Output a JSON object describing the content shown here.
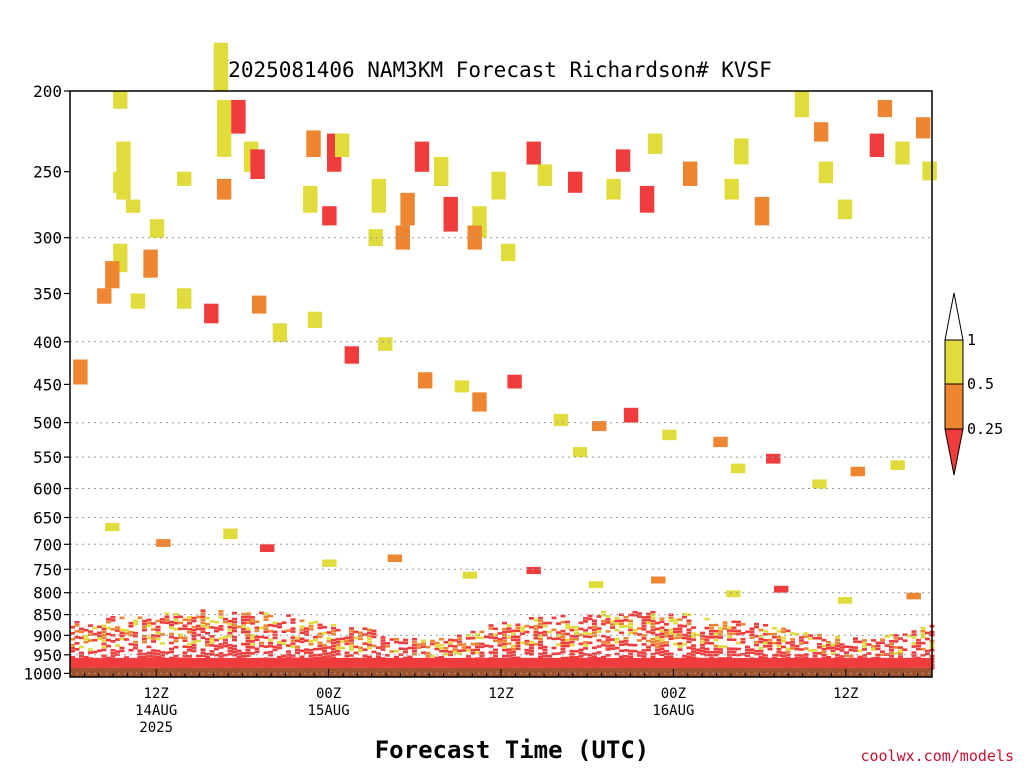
{
  "chart_data": {
    "type": "heatmap",
    "title": "2025081406 NAM3KM Forecast Richardson# KVSF",
    "xlabel": "Forecast Time (UTC)",
    "ylabel": "",
    "credit": "coolwx.com/models",
    "x_start_hour": 0,
    "x_end_hour": 60,
    "x_ticks": [
      {
        "hour": 6,
        "lines": [
          "12Z",
          "14AUG",
          "2025"
        ]
      },
      {
        "hour": 18,
        "lines": [
          "00Z",
          "15AUG"
        ]
      },
      {
        "hour": 30,
        "lines": [
          "12Z"
        ]
      },
      {
        "hour": 42,
        "lines": [
          "00Z",
          "16AUG"
        ]
      },
      {
        "hour": 54,
        "lines": [
          "12Z"
        ]
      }
    ],
    "y_axis": {
      "scale": "log-pressure",
      "top": 200,
      "bottom": 1000,
      "ticks": [
        200,
        250,
        300,
        350,
        400,
        450,
        500,
        550,
        600,
        650,
        700,
        750,
        800,
        850,
        900,
        950,
        1000
      ],
      "gridlines": [
        300,
        400,
        500,
        550,
        600,
        650,
        700,
        750,
        800,
        850,
        900,
        950,
        1000
      ]
    },
    "ground": {
      "pressure": 985,
      "color": "#a0522d"
    },
    "levels": [
      {
        "label": "<0.25",
        "color": "#f03c3c"
      },
      {
        "label": "0.25-0.5",
        "color": "#ee8530"
      },
      {
        "label": "0.5-1",
        "color": "#e0dc3c"
      }
    ],
    "colorbar": {
      "labels": [
        "1",
        "0.5",
        "0.25"
      ],
      "colors": [
        "#ffffff",
        "#e0dc3c",
        "#ee8530",
        "#f03c3c"
      ]
    },
    "cells": [
      [
        3,
        0,
        200,
        210,
        2
      ],
      [
        3,
        2,
        230,
        270,
        2
      ],
      [
        3,
        8,
        270,
        280,
        2
      ],
      [
        3,
        0,
        250,
        265,
        2
      ],
      [
        7,
        4,
        250,
        260,
        2
      ],
      [
        5,
        5,
        285,
        300,
        2
      ],
      [
        3,
        0,
        305,
        330,
        2
      ],
      [
        5,
        1,
        310,
        335,
        1
      ],
      [
        2,
        4,
        320,
        345,
        1
      ],
      [
        1,
        8,
        345,
        360,
        1
      ],
      [
        0,
        2,
        420,
        450,
        1
      ],
      [
        10,
        0,
        175,
        200,
        2
      ],
      [
        10,
        2,
        205,
        240,
        2
      ],
      [
        11,
        2,
        205,
        225,
        0
      ],
      [
        12,
        1,
        230,
        250,
        2
      ],
      [
        10,
        2,
        255,
        270,
        1
      ],
      [
        12,
        5,
        235,
        255,
        0
      ],
      [
        16,
        4,
        223,
        240,
        1
      ],
      [
        17,
        8,
        225,
        250,
        0
      ],
      [
        16,
        2,
        260,
        280,
        2
      ],
      [
        17,
        5,
        275,
        290,
        0
      ],
      [
        18,
        4,
        225,
        240,
        2
      ],
      [
        20,
        7,
        293,
        307,
        2
      ],
      [
        21,
        0,
        255,
        280,
        2
      ],
      [
        23,
        0,
        265,
        290,
        1
      ],
      [
        22,
        6,
        290,
        310,
        1
      ],
      [
        24,
        0,
        230,
        250,
        0
      ],
      [
        25,
        3,
        240,
        260,
        2
      ],
      [
        26,
        0,
        268,
        295,
        0
      ],
      [
        28,
        0,
        275,
        300,
        2
      ],
      [
        29,
        3,
        250,
        270,
        2
      ],
      [
        27,
        6,
        290,
        310,
        1
      ],
      [
        30,
        0,
        305,
        320,
        2
      ],
      [
        31,
        7,
        230,
        245,
        0
      ],
      [
        32,
        5,
        245,
        260,
        2
      ],
      [
        34,
        6,
        250,
        265,
        0
      ],
      [
        37,
        3,
        255,
        270,
        2
      ],
      [
        38,
        0,
        235,
        250,
        0
      ],
      [
        39,
        6,
        260,
        280,
        0
      ],
      [
        40,
        2,
        225,
        238,
        2
      ],
      [
        42,
        6,
        243,
        260,
        1
      ],
      [
        45,
        5,
        255,
        270,
        2
      ],
      [
        46,
        2,
        228,
        245,
        2
      ],
      [
        47,
        6,
        268,
        290,
        1
      ],
      [
        50,
        4,
        200,
        215,
        2
      ],
      [
        51,
        7,
        218,
        230,
        1
      ],
      [
        52,
        1,
        243,
        258,
        2
      ],
      [
        53,
        4,
        270,
        285,
        2
      ],
      [
        55,
        6,
        225,
        240,
        0
      ],
      [
        56,
        2,
        205,
        215,
        1
      ],
      [
        57,
        4,
        230,
        245,
        2
      ],
      [
        58,
        8,
        215,
        228,
        1
      ],
      [
        59,
        3,
        243,
        256,
        2
      ],
      [
        4,
        2,
        350,
        365,
        2
      ],
      [
        7,
        4,
        345,
        365,
        2
      ],
      [
        9,
        3,
        360,
        380,
        0
      ],
      [
        12,
        6,
        352,
        370,
        1
      ],
      [
        14,
        1,
        380,
        400,
        2
      ],
      [
        16,
        5,
        368,
        385,
        2
      ],
      [
        19,
        1,
        405,
        425,
        0
      ],
      [
        21,
        4,
        395,
        410,
        2
      ],
      [
        24,
        2,
        435,
        455,
        1
      ],
      [
        26,
        7,
        445,
        460,
        2
      ],
      [
        28,
        0,
        460,
        485,
        1
      ],
      [
        30,
        4,
        438,
        455,
        0
      ],
      [
        33,
        6,
        488,
        505,
        2
      ],
      [
        35,
        0,
        535,
        550,
        2
      ],
      [
        36,
        3,
        498,
        512,
        1
      ],
      [
        38,
        5,
        480,
        500,
        0
      ],
      [
        41,
        2,
        510,
        525,
        2
      ],
      [
        44,
        7,
        520,
        535,
        1
      ],
      [
        46,
        0,
        560,
        575,
        2
      ],
      [
        48,
        4,
        545,
        560,
        0
      ],
      [
        51,
        6,
        585,
        600,
        2
      ],
      [
        54,
        3,
        565,
        580,
        1
      ],
      [
        57,
        1,
        555,
        570,
        2
      ],
      [
        2,
        4,
        660,
        675,
        2
      ],
      [
        6,
        0,
        690,
        705,
        1
      ],
      [
        10,
        6,
        670,
        690,
        2
      ],
      [
        13,
        2,
        700,
        715,
        0
      ],
      [
        17,
        5,
        730,
        745,
        2
      ],
      [
        22,
        1,
        720,
        735,
        1
      ],
      [
        27,
        3,
        755,
        770,
        2
      ],
      [
        31,
        7,
        745,
        760,
        0
      ],
      [
        36,
        1,
        775,
        790,
        2
      ],
      [
        40,
        4,
        765,
        780,
        1
      ],
      [
        45,
        6,
        795,
        810,
        2
      ],
      [
        49,
        0,
        785,
        800,
        0
      ],
      [
        53,
        4,
        810,
        825,
        2
      ],
      [
        58,
        2,
        800,
        815,
        1
      ]
    ],
    "boundary_layer": {
      "top_pressure": 830,
      "bottom_pressure": 985,
      "seed": 7
    }
  }
}
